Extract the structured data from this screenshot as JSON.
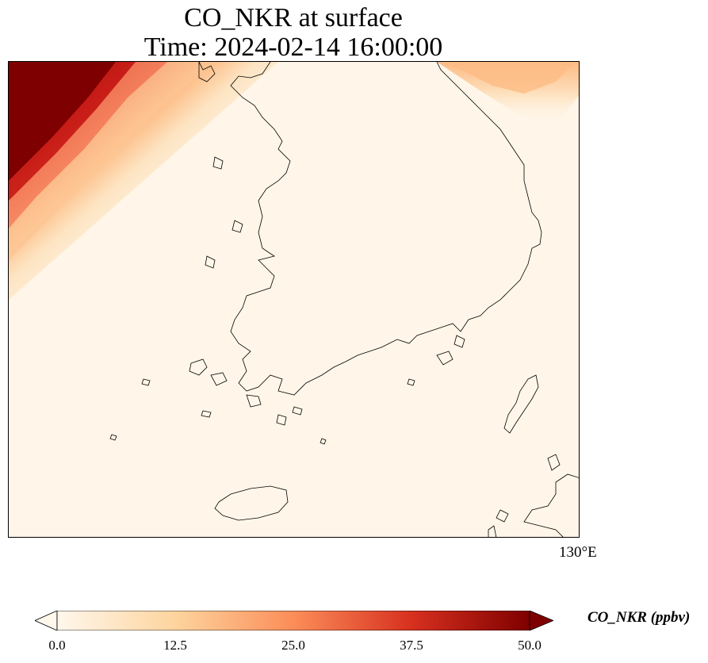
{
  "title": {
    "line1": "CO_NKR at surface",
    "line2": "Time: 2024-02-14 16:00:00"
  },
  "map": {
    "region": "Korean Peninsula (South Korea)",
    "variable": "CO_NKR",
    "level": "surface",
    "longitude_label": "130°E",
    "features": [
      "coastline",
      "jeju-island",
      "tsushima-island"
    ]
  },
  "colorbar": {
    "label": "CO_NKR (ppbv)",
    "colormap": "OrRd",
    "min": 0.0,
    "max": 50.0,
    "ticks": [
      "0.0",
      "12.5",
      "25.0",
      "37.5",
      "50.0"
    ],
    "extend": "both",
    "colors": {
      "low": "#fff7ec",
      "mid_low": "#fdd49e",
      "mid": "#fc8d59",
      "mid_high": "#d7301f",
      "high": "#7f0000"
    }
  }
}
